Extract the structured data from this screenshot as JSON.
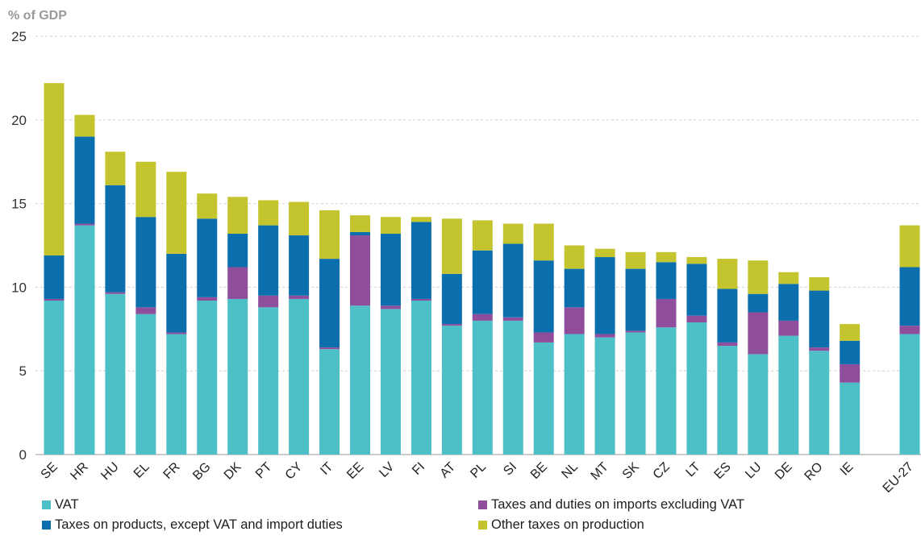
{
  "chart_data": {
    "type": "bar",
    "stacked": true,
    "title": "",
    "ylabel": "% of GDP",
    "xlabel": "",
    "ylim": [
      0,
      25
    ],
    "yticks": [
      0,
      5,
      10,
      15,
      20,
      25
    ],
    "grid": true,
    "legend_position": "bottom",
    "categories": [
      "SE",
      "HR",
      "HU",
      "EL",
      "FR",
      "BG",
      "DK",
      "PT",
      "CY",
      "IT",
      "EE",
      "LV",
      "FI",
      "AT",
      "PL",
      "SI",
      "BE",
      "NL",
      "MT",
      "SK",
      "CZ",
      "LT",
      "ES",
      "LU",
      "DE",
      "RO",
      "IE",
      "EU-27"
    ],
    "series": [
      {
        "name": "VAT",
        "color": "#4dbfc7",
        "values": [
          9.2,
          13.7,
          9.6,
          8.4,
          7.2,
          9.2,
          9.3,
          8.8,
          9.3,
          6.3,
          8.9,
          8.7,
          9.2,
          7.7,
          8.0,
          8.0,
          6.7,
          7.2,
          7.0,
          7.3,
          7.6,
          7.9,
          6.5,
          6.0,
          7.1,
          6.2,
          4.3,
          7.2
        ]
      },
      {
        "name": "Taxes and duties on imports excluding VAT",
        "color": "#8e4e9c",
        "values": [
          0.1,
          0.1,
          0.1,
          0.4,
          0.1,
          0.2,
          1.9,
          0.7,
          0.2,
          0.1,
          4.2,
          0.2,
          0.1,
          0.1,
          0.4,
          0.2,
          0.6,
          1.6,
          0.2,
          0.1,
          1.7,
          0.4,
          0.2,
          2.5,
          0.9,
          0.2,
          1.1,
          0.5
        ]
      },
      {
        "name": "Taxes on products, except VAT and import duties",
        "color": "#0b6fae",
        "values": [
          2.6,
          5.2,
          6.4,
          5.4,
          4.7,
          4.7,
          2.0,
          4.2,
          3.6,
          5.3,
          0.2,
          4.3,
          4.6,
          3.0,
          3.8,
          4.4,
          4.3,
          2.3,
          4.6,
          3.7,
          2.2,
          3.1,
          3.2,
          1.1,
          2.2,
          3.4,
          1.4,
          3.5
        ]
      },
      {
        "name": "Other taxes on production",
        "color": "#c4c52e",
        "values": [
          10.3,
          1.3,
          2.0,
          3.3,
          4.9,
          1.5,
          2.2,
          1.5,
          2.0,
          2.9,
          1.0,
          1.0,
          0.3,
          3.3,
          1.8,
          1.2,
          2.2,
          1.4,
          0.5,
          1.0,
          0.6,
          0.4,
          1.8,
          2.0,
          0.7,
          0.8,
          1.0,
          2.5
        ]
      }
    ]
  }
}
